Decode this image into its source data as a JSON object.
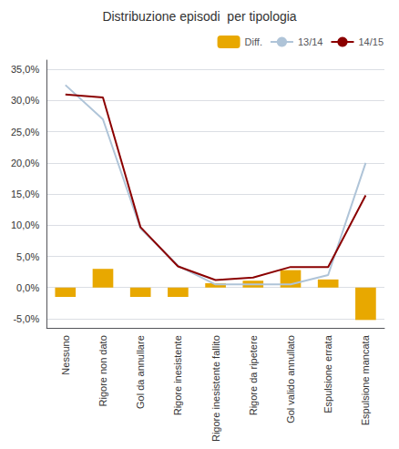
{
  "chart_data": {
    "type": "bar",
    "title": "Distribuzione episodi  per tipologia",
    "categories": [
      "Nessuno",
      "Rigore non dato",
      "Gol da annullare",
      "Rigore inesistente",
      "Rigore inesistente fallito",
      "Rigore da ripetere",
      "Gol valido annullato",
      "Espulsione errata",
      "Espulsione mancata"
    ],
    "series": [
      {
        "name": "Diff.",
        "type": "bar",
        "color": "#e8a800",
        "values": [
          -0.015,
          0.03,
          -0.015,
          -0.015,
          0.007,
          0.011,
          0.028,
          0.013,
          -0.052
        ]
      },
      {
        "name": "13/14",
        "type": "line",
        "color": "#afc4d8",
        "values": [
          0.325,
          0.27,
          0.095,
          0.035,
          0.005,
          0.005,
          0.005,
          0.02,
          0.2
        ]
      },
      {
        "name": "14/15",
        "type": "line",
        "color": "#8b0000",
        "values": [
          0.31,
          0.305,
          0.097,
          0.034,
          0.012,
          0.016,
          0.033,
          0.033,
          0.148
        ]
      }
    ],
    "ylim": [
      -0.065,
      0.365
    ],
    "yticks": [
      {
        "value": 0.35,
        "label": "35,0%"
      },
      {
        "value": 0.3,
        "label": "30,0%"
      },
      {
        "value": 0.25,
        "label": "25,0%"
      },
      {
        "value": 0.2,
        "label": "20,0%"
      },
      {
        "value": 0.15,
        "label": "15,0%"
      },
      {
        "value": 0.1,
        "label": "10,0%"
      },
      {
        "value": 0.05,
        "label": "5,0%"
      },
      {
        "value": 0.0,
        "label": "0,0%"
      },
      {
        "value": -0.05,
        "label": "-5,0%"
      }
    ],
    "grid": true,
    "legend": "upper right"
  }
}
